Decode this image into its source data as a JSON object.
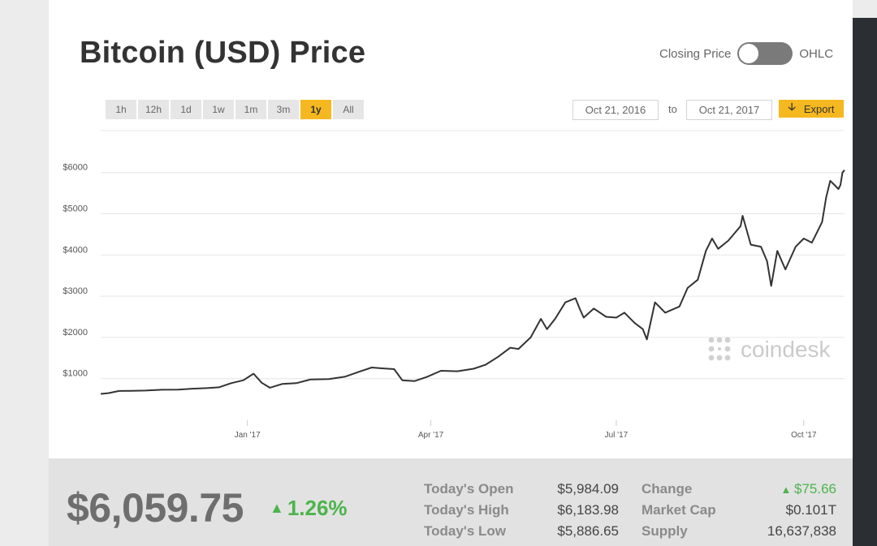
{
  "header": {
    "title": "Bitcoin (USD) Price",
    "toggle_left": "Closing Price",
    "toggle_right": "OHLC"
  },
  "ranges": [
    {
      "label": "1h",
      "active": false
    },
    {
      "label": "12h",
      "active": false
    },
    {
      "label": "1d",
      "active": false
    },
    {
      "label": "1w",
      "active": false
    },
    {
      "label": "1m",
      "active": false
    },
    {
      "label": "3m",
      "active": false
    },
    {
      "label": "1y",
      "active": true
    },
    {
      "label": "All",
      "active": false
    }
  ],
  "date_range": {
    "from": "Oct 21, 2016",
    "to_label": "to",
    "to": "Oct 21, 2017",
    "export_label": "Export",
    "export_icon": "download-arrow-icon"
  },
  "watermark": {
    "text": "coindesk",
    "icon": "coindesk-logo-icon"
  },
  "chart_data": {
    "type": "line",
    "title": "",
    "xlabel": "",
    "ylabel": "",
    "x_tick_labels": [
      "Jan '17",
      "Apr '17",
      "Jul '17",
      "Oct '17"
    ],
    "y_tick_labels": [
      "$1000",
      "$2000",
      "$3000",
      "$4000",
      "$5000",
      "$6000"
    ],
    "ylim": [
      0,
      6500
    ],
    "x_range": [
      "2016-10-21",
      "2017-10-21"
    ],
    "grid": true,
    "line_color": "#333333",
    "series": [
      {
        "values": [
          [
            "2016-10-21",
            630
          ],
          [
            "2016-10-25",
            650
          ],
          [
            "2016-10-30",
            700
          ],
          [
            "2016-11-05",
            705
          ],
          [
            "2016-11-12",
            710
          ],
          [
            "2016-11-20",
            730
          ],
          [
            "2016-11-28",
            735
          ],
          [
            "2016-12-05",
            755
          ],
          [
            "2016-12-12",
            770
          ],
          [
            "2016-12-18",
            790
          ],
          [
            "2016-12-24",
            890
          ],
          [
            "2016-12-30",
            960
          ],
          [
            "2017-01-04",
            1120
          ],
          [
            "2017-01-08",
            900
          ],
          [
            "2017-01-12",
            780
          ],
          [
            "2017-01-18",
            870
          ],
          [
            "2017-01-25",
            890
          ],
          [
            "2017-02-01",
            980
          ],
          [
            "2017-02-10",
            990
          ],
          [
            "2017-02-18",
            1050
          ],
          [
            "2017-02-25",
            1170
          ],
          [
            "2017-03-03",
            1270
          ],
          [
            "2017-03-08",
            1250
          ],
          [
            "2017-03-14",
            1230
          ],
          [
            "2017-03-18",
            960
          ],
          [
            "2017-03-24",
            940
          ],
          [
            "2017-03-30",
            1040
          ],
          [
            "2017-04-06",
            1190
          ],
          [
            "2017-04-14",
            1180
          ],
          [
            "2017-04-22",
            1240
          ],
          [
            "2017-04-28",
            1340
          ],
          [
            "2017-05-04",
            1530
          ],
          [
            "2017-05-10",
            1750
          ],
          [
            "2017-05-14",
            1720
          ],
          [
            "2017-05-20",
            2000
          ],
          [
            "2017-05-25",
            2450
          ],
          [
            "2017-05-28",
            2200
          ],
          [
            "2017-06-01",
            2450
          ],
          [
            "2017-06-06",
            2850
          ],
          [
            "2017-06-11",
            2950
          ],
          [
            "2017-06-13",
            2700
          ],
          [
            "2017-06-15",
            2480
          ],
          [
            "2017-06-20",
            2700
          ],
          [
            "2017-06-26",
            2500
          ],
          [
            "2017-07-01",
            2480
          ],
          [
            "2017-07-05",
            2600
          ],
          [
            "2017-07-10",
            2350
          ],
          [
            "2017-07-14",
            2200
          ],
          [
            "2017-07-16",
            1950
          ],
          [
            "2017-07-20",
            2850
          ],
          [
            "2017-07-25",
            2600
          ],
          [
            "2017-08-01",
            2750
          ],
          [
            "2017-08-05",
            3200
          ],
          [
            "2017-08-10",
            3400
          ],
          [
            "2017-08-14",
            4100
          ],
          [
            "2017-08-17",
            4400
          ],
          [
            "2017-08-20",
            4150
          ],
          [
            "2017-08-25",
            4350
          ],
          [
            "2017-08-31",
            4700
          ],
          [
            "2017-09-01",
            4950
          ],
          [
            "2017-09-05",
            4250
          ],
          [
            "2017-09-10",
            4200
          ],
          [
            "2017-09-13",
            3850
          ],
          [
            "2017-09-15",
            3250
          ],
          [
            "2017-09-18",
            4100
          ],
          [
            "2017-09-22",
            3650
          ],
          [
            "2017-09-27",
            4200
          ],
          [
            "2017-10-01",
            4400
          ],
          [
            "2017-10-05",
            4300
          ],
          [
            "2017-10-08",
            4600
          ],
          [
            "2017-10-10",
            4800
          ],
          [
            "2017-10-12",
            5400
          ],
          [
            "2017-10-14",
            5800
          ],
          [
            "2017-10-16",
            5700
          ],
          [
            "2017-10-18",
            5600
          ],
          [
            "2017-10-19",
            5700
          ],
          [
            "2017-10-20",
            6000
          ],
          [
            "2017-10-21",
            6060
          ]
        ]
      }
    ]
  },
  "stats": {
    "price": "$6,059.75",
    "change_pct": "1.26%",
    "change_dir_icon": "up-triangle-icon",
    "rows": [
      {
        "label": "Today's Open",
        "value": "$5,984.09",
        "label2": "Change",
        "value2": "$75.66"
      },
      {
        "label": "Today's High",
        "value": "$6,183.98",
        "label2": "Market Cap",
        "value2": "$0.101T"
      },
      {
        "label": "Today's Low",
        "value": "$5,886.65",
        "label2": "Supply",
        "value2": "16,637,838"
      }
    ],
    "colors": {
      "up": "#4cb44c"
    }
  }
}
